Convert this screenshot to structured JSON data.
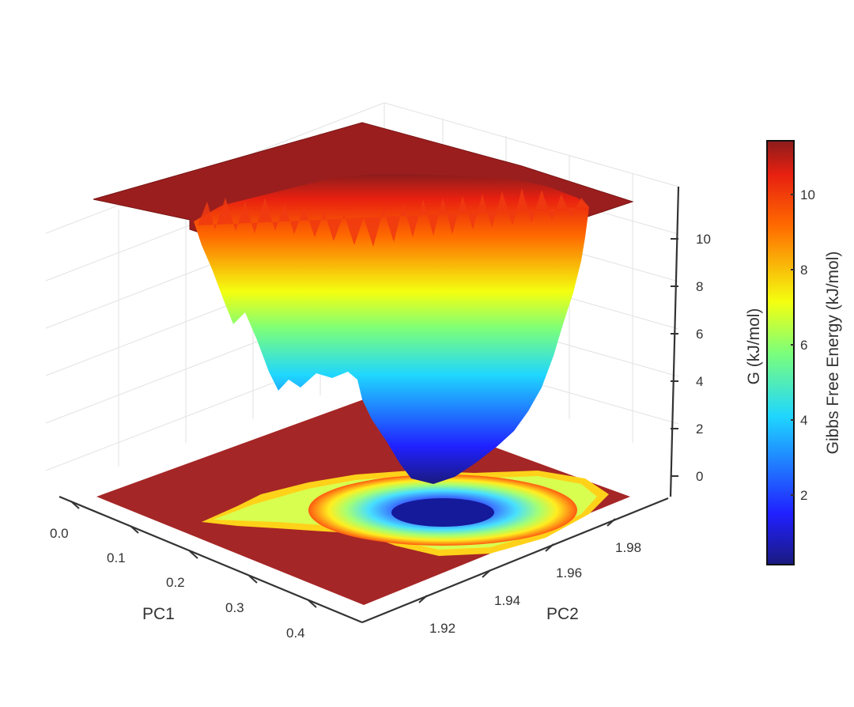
{
  "chart_data": {
    "type": "surface",
    "title": "",
    "x_axis": {
      "label": "PC1",
      "ticks": [
        "0.0",
        "0.1",
        "0.2",
        "0.3",
        "0.4"
      ],
      "range": [
        0.0,
        0.43
      ]
    },
    "y_axis": {
      "label": "PC2",
      "ticks": [
        "1.92",
        "1.94",
        "1.96",
        "1.98"
      ],
      "range": [
        1.91,
        1.99
      ]
    },
    "z_axis": {
      "label": "G (kJ/mol)",
      "ticks": [
        "0",
        "2",
        "4",
        "6",
        "8",
        "10"
      ],
      "range": [
        0,
        11.3
      ]
    },
    "colorbar": {
      "label": "Gibbs Free Energy (kJ/mol)",
      "ticks": [
        "2",
        "4",
        "6",
        "8",
        "10"
      ],
      "range": [
        0.1,
        11.3
      ],
      "colormap": "jet"
    },
    "series": [
      {
        "kind": "surface",
        "minimum": {
          "pc1": 0.22,
          "pc2": 1.955,
          "g": 0.1
        },
        "plateau_g": 11.3
      },
      {
        "kind": "contour-projection",
        "plane": "floor"
      }
    ],
    "grid": true
  }
}
